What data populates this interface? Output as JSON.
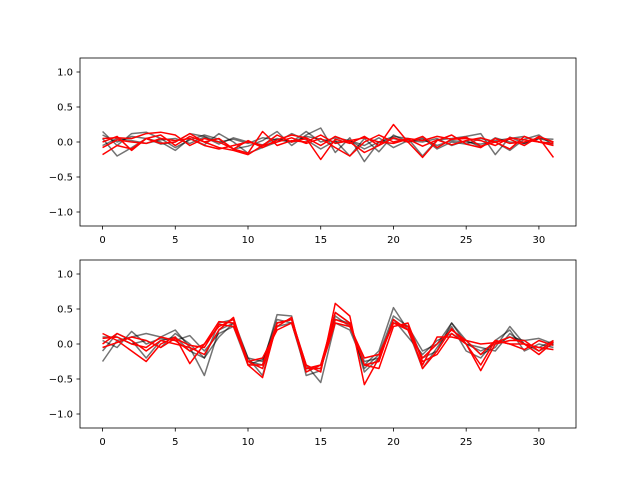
{
  "chart_data": [
    {
      "type": "line",
      "title": "",
      "xlabel": "",
      "ylabel": "",
      "xlim": [
        -1.55,
        32.55
      ],
      "ylim": [
        -1.2,
        1.2
      ],
      "xticks": [
        0,
        5,
        10,
        15,
        20,
        25,
        30
      ],
      "yticks": [
        -1.0,
        -0.5,
        0.0,
        0.5,
        1.0
      ],
      "xtick_labels": [
        "0",
        "5",
        "10",
        "15",
        "20",
        "25",
        "30"
      ],
      "ytick_labels": [
        "−1.0",
        "−0.5",
        "0.0",
        "0.5",
        "1.0"
      ],
      "grid": false,
      "x": [
        0,
        1,
        2,
        3,
        4,
        5,
        6,
        7,
        8,
        9,
        10,
        11,
        12,
        13,
        14,
        15,
        16,
        17,
        18,
        19,
        20,
        21,
        22,
        23,
        24,
        25,
        26,
        27,
        28,
        29,
        30,
        31
      ],
      "series": [
        {
          "color": "#000000",
          "opacity": 0.55,
          "values": [
            0.15,
            -0.05,
            0.12,
            0.14,
            0.05,
            -0.08,
            0.03,
            0.1,
            0.04,
            -0.1,
            -0.06,
            0.02,
            0.15,
            -0.05,
            0.1,
            0.2,
            -0.15,
            0.06,
            -0.28,
            0.0,
            0.08,
            0.05,
            -0.2,
            0.03,
            0.05,
            0.08,
            0.12,
            -0.18,
            0.07,
            -0.02,
            0.05,
            0.04
          ]
        },
        {
          "color": "#000000",
          "opacity": 0.55,
          "values": [
            0.05,
            -0.2,
            -0.08,
            0.05,
            0.0,
            -0.12,
            0.05,
            -0.04,
            0.12,
            0.0,
            -0.16,
            -0.08,
            0.0,
            0.12,
            0.03,
            -0.1,
            0.02,
            -0.2,
            0.05,
            -0.14,
            0.1,
            0.0,
            0.06,
            -0.1,
            0.0,
            -0.03,
            0.05,
            0.0,
            -0.12,
            0.04,
            0.1,
            -0.05
          ]
        },
        {
          "color": "#000000",
          "opacity": 0.55,
          "values": [
            -0.05,
            0.05,
            0.02,
            -0.02,
            0.03,
            0.05,
            -0.02,
            0.07,
            -0.03,
            0.06,
            0.0,
            -0.04,
            0.05,
            0.0,
            0.08,
            0.04,
            0.0,
            0.02,
            -0.05,
            0.06,
            -0.08,
            0.02,
            0.0,
            0.05,
            -0.05,
            0.02,
            -0.07,
            0.06,
            0.0,
            -0.02,
            0.05,
            0.0
          ]
        },
        {
          "color": "#000000",
          "opacity": 0.55,
          "values": [
            0.1,
            0.0,
            0.08,
            0.05,
            -0.03,
            0.0,
            0.12,
            0.08,
            0.0,
            0.04,
            -0.02,
            0.06,
            0.03,
            0.0,
            0.15,
            0.0,
            0.06,
            0.02,
            -0.1,
            0.0,
            0.05,
            0.0,
            0.04,
            -0.05,
            0.02,
            0.0,
            -0.03,
            0.02,
            0.05,
            0.08,
            0.0,
            -0.02
          ]
        },
        {
          "color": "#ff0000",
          "opacity": 1,
          "values": [
            -0.18,
            -0.05,
            -0.1,
            0.05,
            -0.02,
            0.0,
            0.12,
            0.0,
            -0.08,
            -0.12,
            -0.18,
            -0.05,
            0.1,
            0.0,
            0.05,
            -0.25,
            0.04,
            -0.02,
            0.08,
            -0.05,
            0.06,
            0.0,
            -0.22,
            0.02,
            0.1,
            -0.03,
            -0.08,
            0.05,
            -0.02,
            0.0,
            0.06,
            -0.22
          ]
        },
        {
          "color": "#ff0000",
          "opacity": 1,
          "values": [
            0.05,
            0.06,
            0.05,
            0.12,
            0.14,
            0.1,
            -0.05,
            0.05,
            0.0,
            -0.1,
            0.02,
            -0.08,
            0.03,
            0.1,
            0.06,
            -0.05,
            0.08,
            0.0,
            -0.15,
            -0.05,
            0.25,
            0.0,
            0.08,
            -0.08,
            0.04,
            0.07,
            -0.06,
            0.0,
            -0.1,
            0.08,
            0.0,
            -0.05
          ]
        },
        {
          "color": "#ff0000",
          "opacity": 1,
          "values": [
            0.0,
            0.08,
            -0.12,
            0.05,
            0.1,
            -0.05,
            0.08,
            0.0,
            0.05,
            -0.1,
            -0.16,
            0.15,
            -0.05,
            0.02,
            0.0,
            0.1,
            -0.02,
            0.02,
            0.06,
            0.0,
            -0.02,
            0.04,
            -0.06,
            0.03,
            -0.04,
            0.02,
            0.06,
            0.0,
            0.04,
            -0.05,
            0.08,
            0.0
          ]
        },
        {
          "color": "#ff0000",
          "opacity": 1,
          "values": [
            -0.08,
            0.03,
            0.0,
            -0.02,
            0.05,
            0.02,
            0.05,
            -0.05,
            -0.1,
            -0.05,
            0.0,
            -0.05,
            0.0,
            0.06,
            -0.02,
            0.05,
            -0.08,
            -0.2,
            0.0,
            0.1,
            0.0,
            0.05,
            0.02,
            0.08,
            0.04,
            0.05,
            0.02,
            -0.05,
            0.06,
            0.03,
            0.0,
            -0.02
          ]
        }
      ]
    },
    {
      "type": "line",
      "title": "",
      "xlabel": "",
      "ylabel": "",
      "xlim": [
        -1.55,
        32.55
      ],
      "ylim": [
        -1.2,
        1.2
      ],
      "xticks": [
        0,
        5,
        10,
        15,
        20,
        25,
        30
      ],
      "yticks": [
        -1.0,
        -0.5,
        0.0,
        0.5,
        1.0
      ],
      "xtick_labels": [
        "0",
        "5",
        "10",
        "15",
        "20",
        "25",
        "30"
      ],
      "ytick_labels": [
        "−1.0",
        "−0.5",
        "0.0",
        "0.5",
        "1.0"
      ],
      "grid": false,
      "x": [
        0,
        1,
        2,
        3,
        4,
        5,
        6,
        7,
        8,
        9,
        10,
        11,
        12,
        13,
        14,
        15,
        16,
        17,
        18,
        19,
        20,
        21,
        22,
        23,
        24,
        25,
        26,
        27,
        28,
        29,
        30,
        31
      ],
      "series": [
        {
          "color": "#000000",
          "opacity": 0.55,
          "values": [
            -0.25,
            0.05,
            0.1,
            0.15,
            0.1,
            0.2,
            -0.05,
            -0.45,
            0.2,
            0.3,
            -0.25,
            -0.3,
            0.42,
            0.4,
            -0.45,
            -0.38,
            0.45,
            0.3,
            -0.4,
            -0.2,
            0.3,
            0.25,
            -0.2,
            -0.1,
            0.3,
            0.05,
            -0.15,
            -0.05,
            0.25,
            0.0,
            -0.05,
            0.05
          ]
        },
        {
          "color": "#000000",
          "opacity": 0.55,
          "values": [
            -0.1,
            0.15,
            0.05,
            -0.2,
            0.05,
            0.1,
            -0.1,
            -0.2,
            0.3,
            0.35,
            -0.2,
            -0.45,
            0.3,
            0.35,
            -0.3,
            -0.55,
            0.3,
            0.2,
            -0.3,
            -0.1,
            0.52,
            0.2,
            -0.35,
            -0.05,
            0.25,
            -0.1,
            -0.2,
            0.05,
            0.2,
            -0.1,
            0.0,
            -0.05
          ]
        },
        {
          "color": "#000000",
          "opacity": 0.55,
          "values": [
            0.05,
            -0.05,
            0.18,
            0.0,
            0.08,
            0.05,
            0.12,
            -0.1,
            0.15,
            0.25,
            -0.3,
            -0.22,
            0.25,
            0.3,
            -0.4,
            -0.3,
            0.4,
            0.25,
            -0.25,
            -0.2,
            0.35,
            0.1,
            -0.15,
            0.05,
            0.15,
            0.0,
            -0.1,
            0.0,
            0.1,
            0.05,
            0.08,
            0.0
          ]
        },
        {
          "color": "#000000",
          "opacity": 0.55,
          "values": [
            0.1,
            0.1,
            0.0,
            0.05,
            -0.05,
            0.15,
            0.0,
            -0.2,
            0.1,
            0.3,
            -0.2,
            -0.25,
            0.35,
            0.3,
            -0.35,
            -0.35,
            0.35,
            0.3,
            -0.35,
            -0.15,
            0.4,
            0.25,
            -0.1,
            0.0,
            0.3,
            0.0,
            -0.05,
            -0.1,
            0.15,
            0.0,
            -0.1,
            0.0
          ]
        },
        {
          "color": "#ff0000",
          "opacity": 1,
          "values": [
            0.15,
            0.05,
            -0.1,
            -0.25,
            0.0,
            0.1,
            -0.28,
            0.0,
            0.32,
            0.3,
            -0.3,
            -0.48,
            0.3,
            0.35,
            -0.3,
            -0.4,
            0.58,
            0.4,
            -0.58,
            -0.2,
            0.3,
            0.25,
            -0.35,
            -0.1,
            0.22,
            0.0,
            -0.38,
            0.0,
            0.05,
            0.05,
            -0.1,
            0.05
          ]
        },
        {
          "color": "#ff0000",
          "opacity": 1,
          "values": [
            0.08,
            0.1,
            0.0,
            -0.05,
            0.1,
            0.05,
            -0.1,
            0.0,
            0.25,
            0.35,
            -0.25,
            -0.35,
            0.25,
            0.38,
            -0.35,
            -0.3,
            0.45,
            0.3,
            -0.3,
            -0.25,
            0.35,
            0.2,
            -0.2,
            0.0,
            0.2,
            0.05,
            -0.15,
            0.05,
            0.0,
            -0.08,
            0.05,
            -0.02
          ]
        },
        {
          "color": "#ff0000",
          "opacity": 1,
          "values": [
            0.0,
            0.15,
            0.05,
            -0.1,
            0.05,
            0.0,
            -0.05,
            -0.15,
            0.2,
            0.38,
            -0.3,
            -0.3,
            0.3,
            0.35,
            -0.4,
            -0.3,
            0.35,
            0.28,
            -0.3,
            -0.35,
            0.25,
            0.3,
            -0.25,
            -0.15,
            0.15,
            0.0,
            -0.3,
            0.05,
            0.0,
            0.0,
            -0.15,
            0.03
          ]
        },
        {
          "color": "#ff0000",
          "opacity": 1,
          "values": [
            -0.05,
            0.02,
            0.1,
            0.05,
            -0.05,
            0.08,
            -0.02,
            -0.05,
            0.28,
            0.25,
            -0.25,
            -0.2,
            0.2,
            0.3,
            -0.35,
            -0.35,
            0.3,
            0.25,
            -0.2,
            -0.15,
            0.3,
            0.2,
            -0.3,
            0.1,
            0.1,
            0.05,
            0.0,
            0.02,
            0.1,
            0.0,
            -0.05,
            -0.08
          ]
        }
      ]
    }
  ]
}
